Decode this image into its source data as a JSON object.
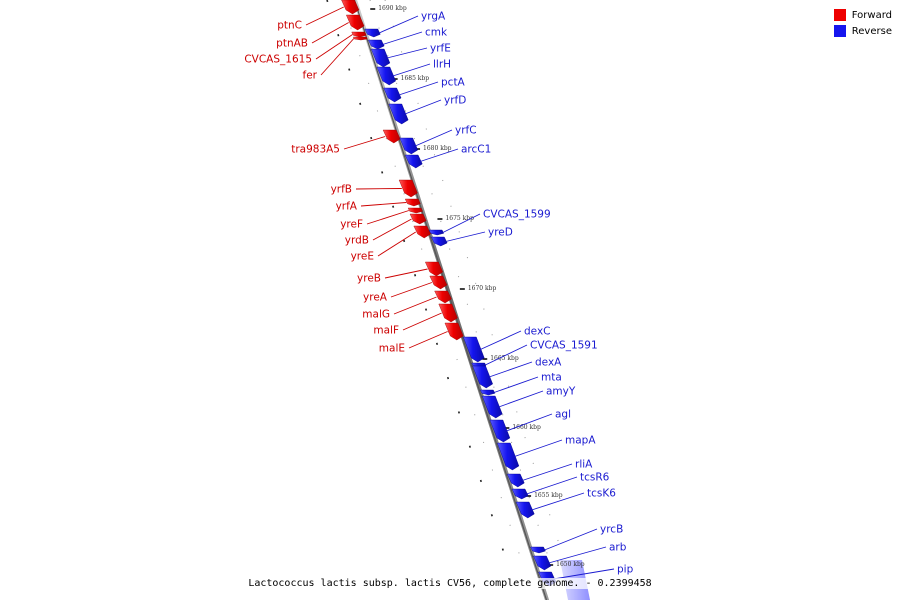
{
  "legend": {
    "forward_label": "Forward",
    "reverse_label": "Reverse",
    "forward_color": "#ee0000",
    "reverse_color": "#1515ee"
  },
  "caption": "Lactococcus lactis subsp. lactis CV56, complete genome. - 0.2399458",
  "label_colors": {
    "forward": "#cc0000",
    "reverse": "#1a1ad0"
  },
  "ruler": {
    "unit": "kbp",
    "ticks": [
      {
        "label": "1690 kbp"
      },
      {
        "label": "1685 kbp"
      },
      {
        "label": "1680 kbp"
      },
      {
        "label": "1675 kbp"
      },
      {
        "label": "1670 kbp"
      },
      {
        "label": "1665 kbp"
      },
      {
        "label": "1660 kbp"
      },
      {
        "label": "1655 kbp"
      },
      {
        "label": "1650 kbp"
      }
    ]
  },
  "genes": [
    {
      "name": "ptnC",
      "strand": "forward"
    },
    {
      "name": "ptnAB",
      "strand": "forward"
    },
    {
      "name": "CVCAS_1615",
      "strand": "forward"
    },
    {
      "name": "fer",
      "strand": "forward"
    },
    {
      "name": "yrgA",
      "strand": "reverse"
    },
    {
      "name": "cmk",
      "strand": "reverse"
    },
    {
      "name": "yrfE",
      "strand": "reverse"
    },
    {
      "name": "llrH",
      "strand": "reverse"
    },
    {
      "name": "pctA",
      "strand": "reverse"
    },
    {
      "name": "yrfD",
      "strand": "reverse"
    },
    {
      "name": "tra983A5",
      "strand": "forward"
    },
    {
      "name": "yrfC",
      "strand": "reverse"
    },
    {
      "name": "arcC1",
      "strand": "reverse"
    },
    {
      "name": "yrfB",
      "strand": "forward"
    },
    {
      "name": "yrfA",
      "strand": "forward"
    },
    {
      "name": "yreF",
      "strand": "forward"
    },
    {
      "name": "yrdB",
      "strand": "forward"
    },
    {
      "name": "yreE",
      "strand": "forward"
    },
    {
      "name": "CVCAS_1599",
      "strand": "reverse"
    },
    {
      "name": "yreD",
      "strand": "reverse"
    },
    {
      "name": "yreB",
      "strand": "forward"
    },
    {
      "name": "yreA",
      "strand": "forward"
    },
    {
      "name": "malG",
      "strand": "forward"
    },
    {
      "name": "malF",
      "strand": "forward"
    },
    {
      "name": "malE",
      "strand": "forward"
    },
    {
      "name": "dexC",
      "strand": "reverse"
    },
    {
      "name": "CVCAS_1591",
      "strand": "reverse"
    },
    {
      "name": "dexA",
      "strand": "reverse"
    },
    {
      "name": "mta",
      "strand": "reverse"
    },
    {
      "name": "amyY",
      "strand": "reverse"
    },
    {
      "name": "agl",
      "strand": "reverse"
    },
    {
      "name": "mapA",
      "strand": "reverse"
    },
    {
      "name": "rliA",
      "strand": "reverse"
    },
    {
      "name": "tcsR6",
      "strand": "reverse"
    },
    {
      "name": "tcsK6",
      "strand": "reverse"
    },
    {
      "name": "yrcB",
      "strand": "reverse"
    },
    {
      "name": "arb",
      "strand": "reverse"
    },
    {
      "name": "pip",
      "strand": "reverse"
    }
  ]
}
